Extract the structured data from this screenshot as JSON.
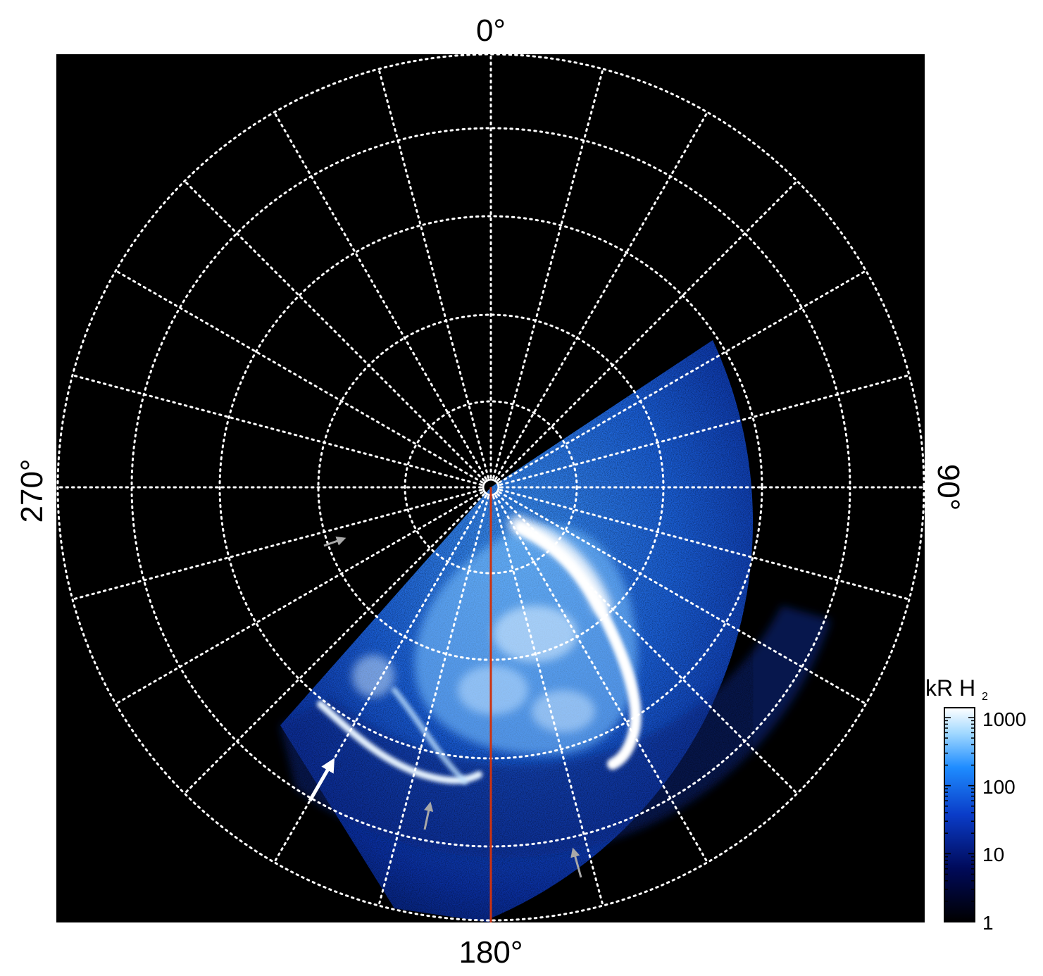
{
  "figure": {
    "longitude_labels": {
      "top": "0°",
      "right": "90°",
      "bottom": "180°",
      "left": "270°"
    },
    "colorbar": {
      "unit_main": "kR H",
      "unit_subscript": "2",
      "ticks": [
        "1000",
        "100",
        "10",
        "1"
      ],
      "scale": "log",
      "colors": [
        "#000000",
        "#000a5a",
        "#0a3cc8",
        "#1e8cff",
        "#a0d8ff",
        "#ffffff"
      ]
    },
    "grid": {
      "style": "dotted",
      "color": "#ffffff",
      "meridian_step_deg": 15,
      "parallel_count": 5
    },
    "colors": {
      "background": "#000000",
      "reference_meridian": "#cc3311",
      "arrow_primary": "#ffffff",
      "arrow_secondary": "#a8a8a8"
    },
    "annotations": {
      "arrow_count_white": 1,
      "arrow_count_gray": 3
    }
  }
}
